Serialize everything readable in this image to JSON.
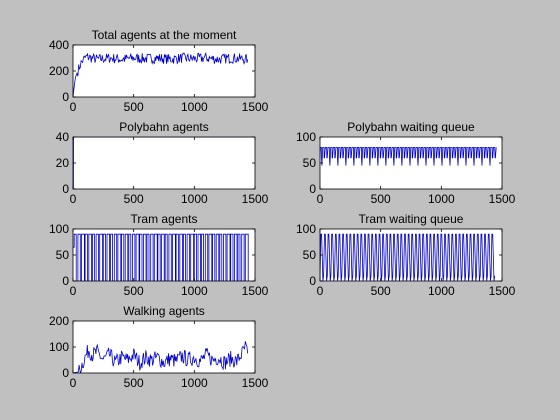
{
  "figure": {
    "background": "#c0c0c0",
    "axes_background": "#ffffff",
    "line_color": "#0000c8"
  },
  "chart_data": [
    {
      "type": "line",
      "title": "Total agents at the moment",
      "xlabel": "",
      "ylabel": "",
      "xlim": [
        0,
        1500
      ],
      "ylim": [
        0,
        400
      ],
      "xticks": [
        "0",
        "500",
        "1000",
        "1500"
      ],
      "yticks": [
        "0",
        "200",
        "400"
      ],
      "grid": false,
      "series": [
        {
          "x": [
            0,
            10,
            20,
            40,
            60,
            80,
            100,
            120,
            150,
            200,
            300,
            400,
            500,
            600,
            700,
            800,
            900,
            1000,
            1100,
            1200,
            1300,
            1440
          ],
          "values": [
            0,
            80,
            150,
            200,
            250,
            280,
            300,
            310,
            300,
            290,
            300,
            290,
            300,
            295,
            300,
            290,
            300,
            295,
            300,
            290,
            300,
            290
          ],
          "noise": 40
        }
      ]
    },
    {
      "type": "line",
      "title": "Polybahn agents",
      "xlabel": "",
      "ylabel": "",
      "xlim": [
        0,
        1500
      ],
      "ylim": [
        0,
        40
      ],
      "xticks": [
        "0",
        "500",
        "1000",
        "1500"
      ],
      "yticks": [
        "0",
        "20",
        "40"
      ],
      "grid": false,
      "series": [
        {
          "x": [
            0,
            3,
            4,
            8,
            9,
            1500
          ],
          "values": [
            0,
            0,
            40,
            40,
            40,
            40
          ]
        }
      ]
    },
    {
      "type": "line",
      "title": "Polybahn waiting queue",
      "xlabel": "",
      "ylabel": "",
      "xlim": [
        0,
        1500
      ],
      "ylim": [
        0,
        100
      ],
      "xticks": [
        "0",
        "500",
        "1000",
        "1500"
      ],
      "yticks": [
        "0",
        "50",
        "100"
      ],
      "grid": false,
      "series": [
        {
          "x_start": 0,
          "x_end": 1440,
          "period": 22,
          "high": 80,
          "low": 60,
          "dip": 45,
          "description_values": [
            60,
            80,
            45
          ]
        }
      ]
    },
    {
      "type": "line",
      "title": "Tram agents",
      "xlabel": "",
      "ylabel": "",
      "xlim": [
        0,
        1500
      ],
      "ylim": [
        0,
        100
      ],
      "xticks": [
        "0",
        "500",
        "1000",
        "1500"
      ],
      "yticks": [
        "0",
        "50",
        "100"
      ],
      "grid": false,
      "series": [
        {
          "x_start": 0,
          "x_end": 1440,
          "period": 30,
          "high": 90,
          "low": 0,
          "initial": 65
        }
      ]
    },
    {
      "type": "line",
      "title": "Tram waiting queue",
      "xlabel": "",
      "ylabel": "",
      "xlim": [
        0,
        1500
      ],
      "ylim": [
        0,
        100
      ],
      "xticks": [
        "0",
        "500",
        "1000",
        "1500"
      ],
      "yticks": [
        "0",
        "50",
        "100"
      ],
      "grid": false,
      "series": [
        {
          "x_start": 0,
          "x_end": 1440,
          "period": 30,
          "high": 90,
          "low": 0
        }
      ]
    },
    {
      "type": "line",
      "title": "Walking agents",
      "xlabel": "",
      "ylabel": "",
      "xlim": [
        0,
        1500
      ],
      "ylim": [
        0,
        200
      ],
      "xticks": [
        "0",
        "500",
        "1000",
        "1500"
      ],
      "yticks": [
        "0",
        "100",
        "200"
      ],
      "grid": false,
      "series": [
        {
          "x": [
            0,
            50,
            80,
            100,
            130,
            160,
            200,
            250,
            300,
            350,
            400,
            450,
            500,
            550,
            600,
            650,
            700,
            750,
            800,
            850,
            900,
            950,
            1000,
            1050,
            1100,
            1150,
            1200,
            1250,
            1300,
            1350,
            1400,
            1420,
            1440
          ],
          "values": [
            0,
            5,
            40,
            60,
            90,
            70,
            80,
            50,
            70,
            40,
            60,
            50,
            70,
            40,
            60,
            50,
            60,
            40,
            55,
            45,
            65,
            50,
            60,
            45,
            70,
            50,
            60,
            40,
            55,
            45,
            80,
            100,
            75
          ],
          "noise": 30
        }
      ]
    }
  ]
}
